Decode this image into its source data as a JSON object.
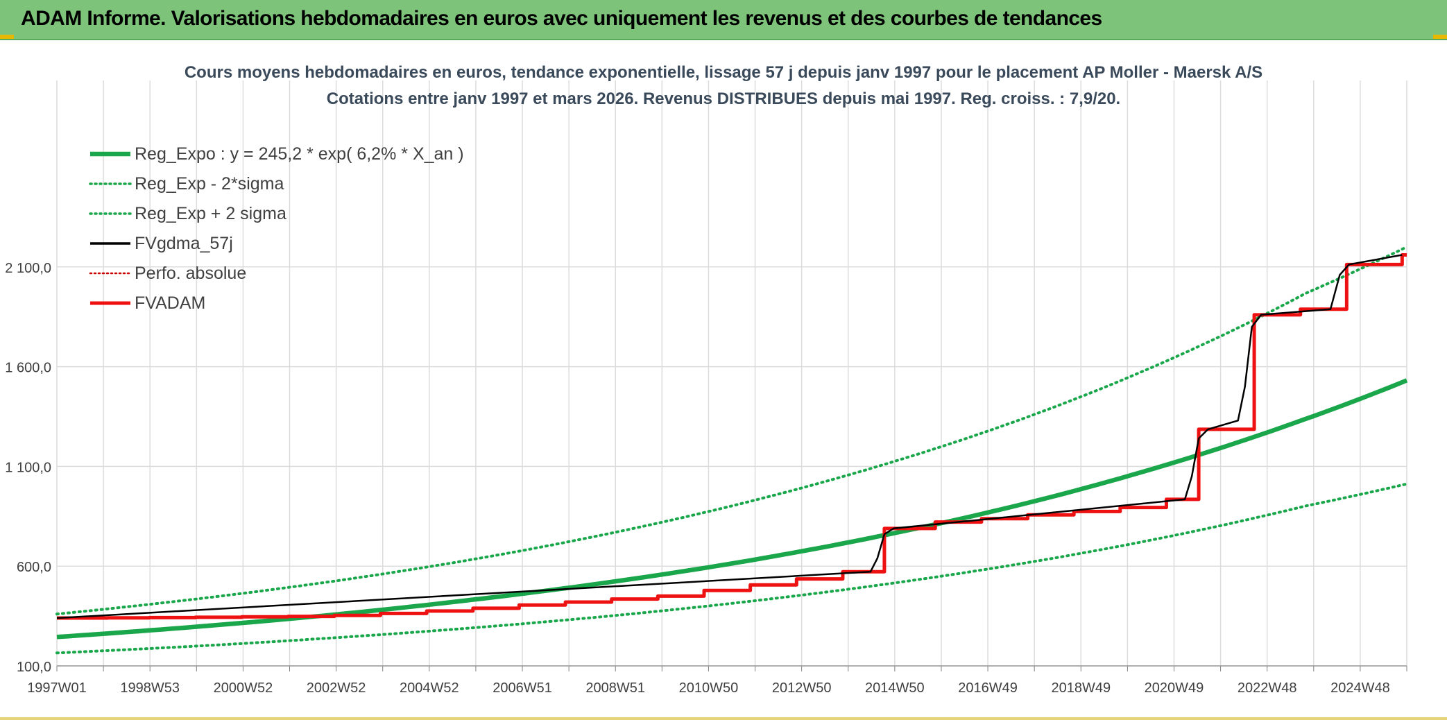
{
  "header": {
    "title": "ADAM Informe. Valorisations hebdomadaires en euros avec uniquement les revenus et des courbes de tendances"
  },
  "colors": {
    "header_bg": "#7dc47a",
    "reg_expo": "#1aa64a",
    "fv_adam": "#ee1111",
    "fvgdma": "#000000",
    "perfo": "#cc0000"
  },
  "chart_data": {
    "type": "line",
    "title": "Cours moyens hebdomadaires en euros, tendance exponentielle, lissage 57 j depuis janv 1997 pour le placement AP Moller - Maersk A/S",
    "subtitle": "Cotations entre janv 1997 et mars 2026. Revenus DISTRIBUES depuis mai 1997. Reg. croiss. : 7,9/20.",
    "xlabel": "",
    "ylabel": "",
    "x_range": [
      "1997W01",
      "2026W12"
    ],
    "ylim": [
      100,
      2300
    ],
    "y_ticks": [
      "100,0",
      "600,0",
      "1 100,0",
      "1 600,0",
      "2 100,0"
    ],
    "x_ticks": [
      "1997W01",
      "1998W53",
      "2000W52",
      "2002W52",
      "2004W52",
      "2006W51",
      "2008W51",
      "2010W50",
      "2012W50",
      "2014W50",
      "2016W49",
      "2018W49",
      "2020W49",
      "2022W48",
      "2024W48"
    ],
    "grid": true,
    "legend_position": "top-left",
    "legend": [
      "Reg_Expo : y = 245,2 * exp( 6,2% *  X_an )",
      "Reg_Exp - 2*sigma",
      "Reg_Exp + 2 sigma",
      "FVgdma_57j",
      "Perfo. absolue",
      "FVADAM"
    ],
    "series": [
      {
        "name": "Reg_Expo : y = 245,2 * exp( 6,2% *  X_an )",
        "style": "solid-thick",
        "color": "#1aa64a",
        "points": [
          [
            1997.0,
            245
          ],
          [
            2000.0,
            296
          ],
          [
            2003.0,
            357
          ],
          [
            2006.0,
            432
          ],
          [
            2009.0,
            521
          ],
          [
            2012.0,
            629
          ],
          [
            2015.0,
            760
          ],
          [
            2018.0,
            917
          ],
          [
            2021.0,
            1108
          ],
          [
            2024.0,
            1337
          ],
          [
            2026.2,
            1531
          ]
        ]
      },
      {
        "name": "Reg_Exp - 2*sigma",
        "style": "dotted",
        "color": "#1aa64a",
        "points": [
          [
            1997.0,
            165
          ],
          [
            2000.0,
            199
          ],
          [
            2003.0,
            241
          ],
          [
            2006.0,
            291
          ],
          [
            2009.0,
            351
          ],
          [
            2012.0,
            424
          ],
          [
            2015.0,
            512
          ],
          [
            2018.0,
            618
          ],
          [
            2021.0,
            746
          ],
          [
            2024.0,
            901
          ],
          [
            2026.2,
            1012
          ]
        ]
      },
      {
        "name": "Reg_Exp + 2 sigma",
        "style": "dotted",
        "color": "#1aa64a",
        "points": [
          [
            1997.0,
            360
          ],
          [
            2000.0,
            435
          ],
          [
            2003.0,
            525
          ],
          [
            2006.0,
            634
          ],
          [
            2009.0,
            766
          ],
          [
            2012.0,
            925
          ],
          [
            2015.0,
            1117
          ],
          [
            2018.0,
            1348
          ],
          [
            2021.0,
            1628
          ],
          [
            2024.0,
            1966
          ],
          [
            2026.2,
            2200
          ]
        ]
      },
      {
        "name": "FVADAM",
        "style": "step-thick",
        "color": "#ee1111",
        "points": [
          [
            1997.0,
            340
          ],
          [
            1998.1,
            341
          ],
          [
            1999.0,
            342
          ],
          [
            2000.0,
            344
          ],
          [
            2001.0,
            346
          ],
          [
            2002.0,
            348
          ],
          [
            2003.0,
            353
          ],
          [
            2004.0,
            363
          ],
          [
            2005.0,
            375
          ],
          [
            2006.0,
            389
          ],
          [
            2007.0,
            405
          ],
          [
            2008.0,
            420
          ],
          [
            2009.0,
            435
          ],
          [
            2010.0,
            450
          ],
          [
            2011.0,
            478
          ],
          [
            2012.0,
            506
          ],
          [
            2013.0,
            536
          ],
          [
            2014.0,
            572
          ],
          [
            2014.9,
            789
          ],
          [
            2016.0,
            821
          ],
          [
            2017.0,
            838
          ],
          [
            2018.0,
            857
          ],
          [
            2019.0,
            874
          ],
          [
            2020.0,
            894
          ],
          [
            2021.0,
            935
          ],
          [
            2021.7,
            1286
          ],
          [
            2022.9,
            1860
          ],
          [
            2023.9,
            1888
          ],
          [
            2024.9,
            2112
          ],
          [
            2026.1,
            2160
          ]
        ]
      },
      {
        "name": "FVgdma_57j",
        "style": "solid-thin",
        "color": "#000000",
        "points": [
          [
            1997.0,
            340
          ],
          [
            2014.6,
            572
          ],
          [
            2014.75,
            640
          ],
          [
            2014.9,
            760
          ],
          [
            2015.1,
            789
          ],
          [
            2021.4,
            935
          ],
          [
            2021.55,
            1050
          ],
          [
            2021.7,
            1240
          ],
          [
            2021.9,
            1286
          ],
          [
            2022.55,
            1330
          ],
          [
            2022.7,
            1500
          ],
          [
            2022.85,
            1800
          ],
          [
            2023.05,
            1860
          ],
          [
            2024.55,
            1888
          ],
          [
            2024.75,
            2060
          ],
          [
            2024.95,
            2112
          ],
          [
            2026.1,
            2160
          ]
        ]
      }
    ]
  }
}
